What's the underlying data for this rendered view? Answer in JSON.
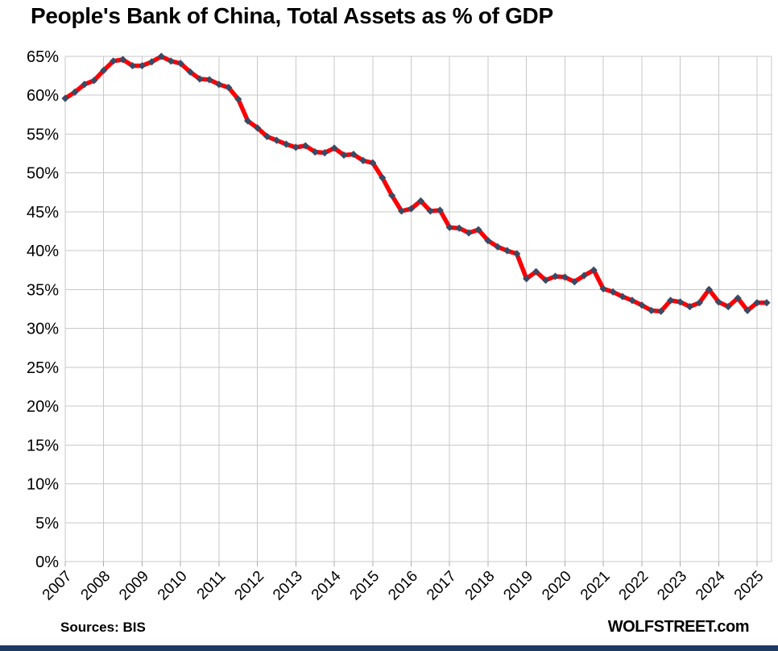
{
  "header": {
    "title": "People's Bank of China, Total Assets as % of GDP"
  },
  "footer": {
    "source": "Sources: BIS",
    "brand": "WOLFSTREET.com"
  },
  "colors": {
    "line": "#FB0005",
    "marker": "#3B4A63",
    "gridline": "#C8C8C8",
    "axis": "#ABABAB",
    "text": "#000000",
    "bottom_bar": "#1F3864",
    "background": "#FFFFFF"
  },
  "chart_data": {
    "type": "line",
    "title": "People's Bank of China, Total Assets as % of GDP",
    "xlabel": "",
    "ylabel": "",
    "unit": "%",
    "grid": true,
    "legend": "none",
    "ylim": [
      0,
      65
    ],
    "y_ticks": [
      0,
      5,
      10,
      15,
      20,
      25,
      30,
      35,
      40,
      45,
      50,
      55,
      60,
      65
    ],
    "y_tick_labels": [
      "0%",
      "5%",
      "10%",
      "15%",
      "20%",
      "25%",
      "30%",
      "35%",
      "40%",
      "45%",
      "50%",
      "55%",
      "60%",
      "65%"
    ],
    "x_tick_labels": [
      "2007",
      "2008",
      "2009",
      "2010",
      "2011",
      "2012",
      "2013",
      "2014",
      "2015",
      "2016",
      "2017",
      "2018",
      "2019",
      "2020",
      "2021",
      "2022",
      "2023",
      "2024",
      "2025"
    ],
    "series": [
      {
        "name": "PBOC total assets as % of GDP",
        "frequency": "quarterly",
        "start": "2007Q1",
        "end": "2025Q2",
        "marker": "diamond",
        "values": [
          59.6,
          60.4,
          61.4,
          61.9,
          63.2,
          64.4,
          64.6,
          63.8,
          63.8,
          64.3,
          65.0,
          64.4,
          64.1,
          63.0,
          62.1,
          62.0,
          61.4,
          61.0,
          59.5,
          56.7,
          55.8,
          54.7,
          54.2,
          53.7,
          53.3,
          53.5,
          52.7,
          52.6,
          53.2,
          52.3,
          52.4,
          51.6,
          51.3,
          49.4,
          47.1,
          45.1,
          45.4,
          46.4,
          45.1,
          45.2,
          43.0,
          42.9,
          42.3,
          42.7,
          41.3,
          40.5,
          40.0,
          39.6,
          36.4,
          37.3,
          36.2,
          36.7,
          36.6,
          36.0,
          36.8,
          37.5,
          35.1,
          34.7,
          34.1,
          33.6,
          33.0,
          32.3,
          32.2,
          33.6,
          33.4,
          32.8,
          33.3,
          35.0,
          33.4,
          32.8,
          33.9,
          32.3,
          33.3,
          33.3
        ]
      }
    ]
  }
}
